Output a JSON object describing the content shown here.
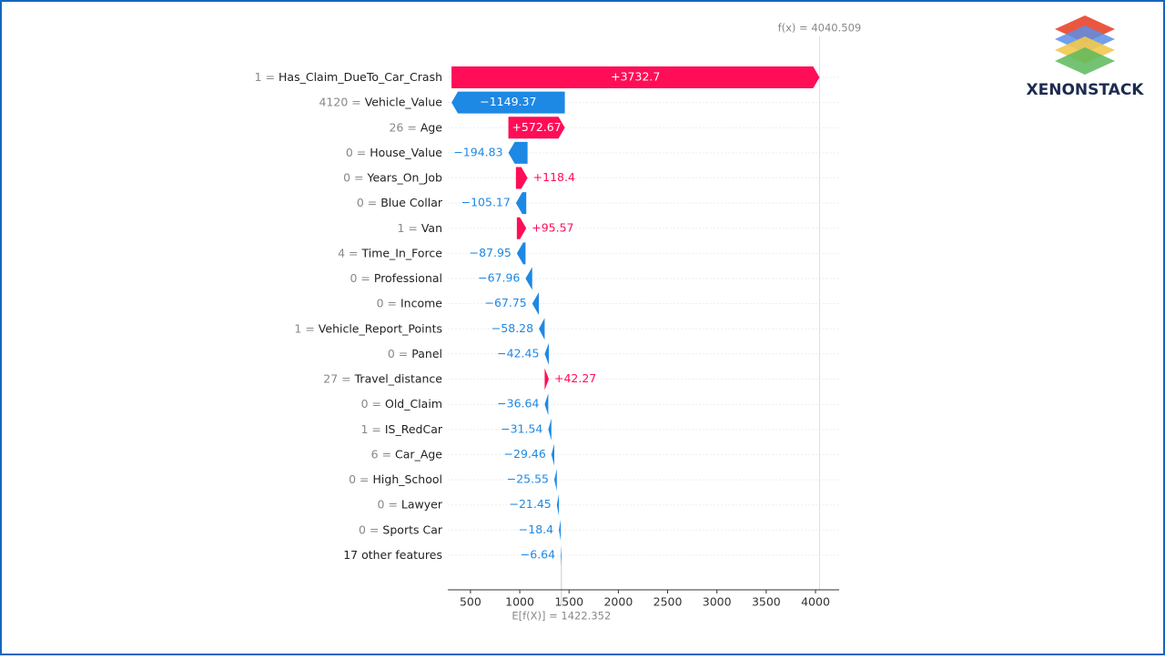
{
  "chart_data": {
    "type": "waterfall",
    "categories": [
      "Has_Claim_DueTo_Car_Crash",
      "Vehicle_Value",
      "Age",
      "House_Value",
      "Years_On_Job",
      "Blue Collar",
      "Van",
      "Time_In_Force",
      "Professional",
      "Income",
      "Vehicle_Report_Points",
      "Panel",
      "Travel_distance",
      "Old_Claim",
      "IS_RedCar",
      "Car_Age",
      "High_School",
      "Lawyer",
      "Sports Car",
      "17 other features"
    ],
    "feature_values": [
      "1 =",
      "4120 =",
      "26 =",
      "0 =",
      "0 =",
      "0 =",
      "1 =",
      "4 =",
      "0 =",
      "0 =",
      "1 =",
      "0 =",
      "27 =",
      "0 =",
      "1 =",
      "6 =",
      "0 =",
      "0 =",
      "0 =",
      null
    ],
    "values": [
      3732.7,
      -1149.37,
      572.67,
      -194.83,
      118.4,
      -105.17,
      95.57,
      -87.95,
      -67.96,
      -67.75,
      -58.28,
      -42.45,
      42.27,
      -36.64,
      -31.54,
      -29.46,
      -25.55,
      -21.45,
      -18.4,
      -6.64
    ],
    "value_labels": [
      "+3732.7",
      "−1149.37",
      "+572.67",
      "−194.83",
      "+118.4",
      "−105.17",
      "+95.57",
      "−87.95",
      "−67.96",
      "−67.75",
      "−58.28",
      "−42.45",
      "+42.27",
      "−36.64",
      "−31.54",
      "−29.46",
      "−25.55",
      "−21.45",
      "−18.4",
      "−6.64"
    ],
    "positive_color": "#ff0d57",
    "negative_color": "#1e88e5",
    "base_value": 1422.352,
    "base_label": "E[f(X)] = 1422.352",
    "final_value": 4040.509,
    "final_label": "f(x) = 4040.509",
    "xlim": [
      270,
      4240
    ],
    "xticks": [
      500,
      1000,
      1500,
      2000,
      2500,
      3000,
      3500,
      4000
    ]
  },
  "logo": "XENONSTACK"
}
